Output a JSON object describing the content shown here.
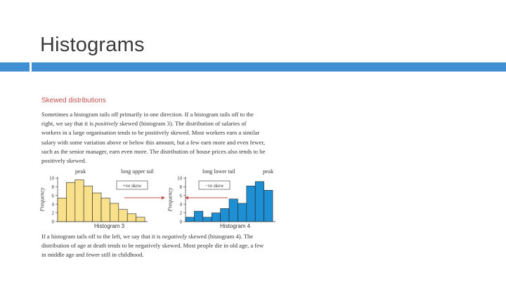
{
  "slide": {
    "title": "Histograms"
  },
  "section": {
    "heading": "Skewed distributions"
  },
  "paragraph1": {
    "line1": "Sometimes a histogram tails off primarily in one direction. If a histogram tails off to the",
    "line2_pre": "right, we say that it is ",
    "line2_em": "positively",
    "line2_post": " skewed (histogram 3). The distribution of salaries of",
    "line3": "workers in a large organisation tends to be positively skewed. Most workers earn a similar",
    "line4": "salary with some variation above or below this amount, but a few earn more and even fewer,",
    "line5": "such as the senior manager, earn even more. The distribution of house prices also tends to be",
    "line6": "positively skewed."
  },
  "paragraph2": {
    "line1_pre": "If a histogram tails off to the left, we say that it is ",
    "line1_em": "negatively",
    "line1_post": " skewed (histogram 4). The",
    "line2": "distribution of age at death tends to be negatively skewed. Most people die in old age, a few",
    "line3": "in middle age and fewer still in childhood."
  },
  "hist3": {
    "peak_label": "peak",
    "tail_label": "long upper tail",
    "skew_label": "+ve skew",
    "ylabel": "Frequency",
    "caption": "Histogram 3",
    "yticks": [
      "0",
      "2",
      "4",
      "6",
      "8",
      "10"
    ],
    "values": [
      5.4,
      9.0,
      9.6,
      8.2,
      6.6,
      5.4,
      4.2,
      2.8,
      1.8,
      1.0
    ],
    "ymax": 10,
    "fill": "#f9e08a",
    "arrow_color": "#c0504d"
  },
  "hist4": {
    "peak_label": "peak",
    "tail_label": "long lower tail",
    "skew_label": "−ve skew",
    "ylabel": "Frequency",
    "caption": "Histogram 4",
    "yticks": [
      "0",
      "2",
      "4",
      "6",
      "8",
      "10"
    ],
    "values": [
      1.0,
      2.4,
      1.0,
      2.0,
      3.0,
      5.2,
      4.2,
      8.2,
      9.2,
      7.2
    ],
    "ymax": 10,
    "fill": "#1f8fd4",
    "arrow_color": "#c0504d"
  }
}
